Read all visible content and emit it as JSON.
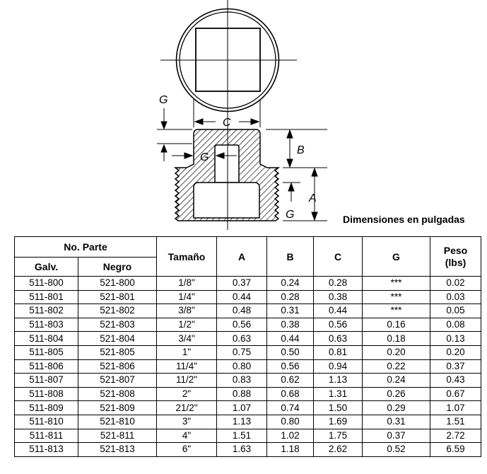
{
  "drawing": {
    "labels": {
      "G_top": "G",
      "C": "C",
      "G_mid": "G",
      "B": "B",
      "A": "A",
      "G_bottom": "G"
    }
  },
  "caption": "Dimensiones en pulgadas",
  "table": {
    "group_header": "No. Parte",
    "headers": {
      "galv": "Galv.",
      "negro": "Negro",
      "tamano": "Tamaño",
      "a": "A",
      "b": "B",
      "c": "C",
      "g": "G",
      "peso": "Peso\n(lbs)"
    },
    "rows": [
      [
        "511-800",
        "521-800",
        "1/8\"",
        "0.37",
        "0.24",
        "0.28",
        "***",
        "0.02"
      ],
      [
        "511-801",
        "521-801",
        "1/4\"",
        "0.44",
        "0.28",
        "0.38",
        "***",
        "0.03"
      ],
      [
        "511-802",
        "521-802",
        "3/8\"",
        "0.48",
        "0.31",
        "0.44",
        "***",
        "0.05"
      ],
      [
        "511-803",
        "521-803",
        "1/2\"",
        "0.56",
        "0.38",
        "0.56",
        "0.16",
        "0.08"
      ],
      [
        "511-804",
        "521-804",
        "3/4\"",
        "0.63",
        "0.44",
        "0.63",
        "0.18",
        "0.13"
      ],
      [
        "511-805",
        "521-805",
        "1\"",
        "0.75",
        "0.50",
        "0.81",
        "0.20",
        "0.20"
      ],
      [
        "511-806",
        "521-806",
        "11/4\"",
        "0.80",
        "0.56",
        "0.94",
        "0.22",
        "0.37"
      ],
      [
        "511-807",
        "521-807",
        "11/2\"",
        "0.83",
        "0.62",
        "1.13",
        "0.24",
        "0.43"
      ],
      [
        "511-808",
        "521-808",
        "2\"",
        "0.88",
        "0.68",
        "1.31",
        "0.26",
        "0.67"
      ],
      [
        "511-809",
        "521-809",
        "21/2\"",
        "1.07",
        "0.74",
        "1.50",
        "0.29",
        "1.07"
      ],
      [
        "511-810",
        "521-810",
        "3\"",
        "1.13",
        "0.80",
        "1.69",
        "0.31",
        "1.51"
      ],
      [
        "511-811",
        "521-811",
        "4\"",
        "1.51",
        "1.02",
        "1.75",
        "0.37",
        "2.72"
      ],
      [
        "511-813",
        "521-813",
        "6\"",
        "1.63",
        "1.18",
        "2.62",
        "0.52",
        "6.59"
      ]
    ]
  }
}
